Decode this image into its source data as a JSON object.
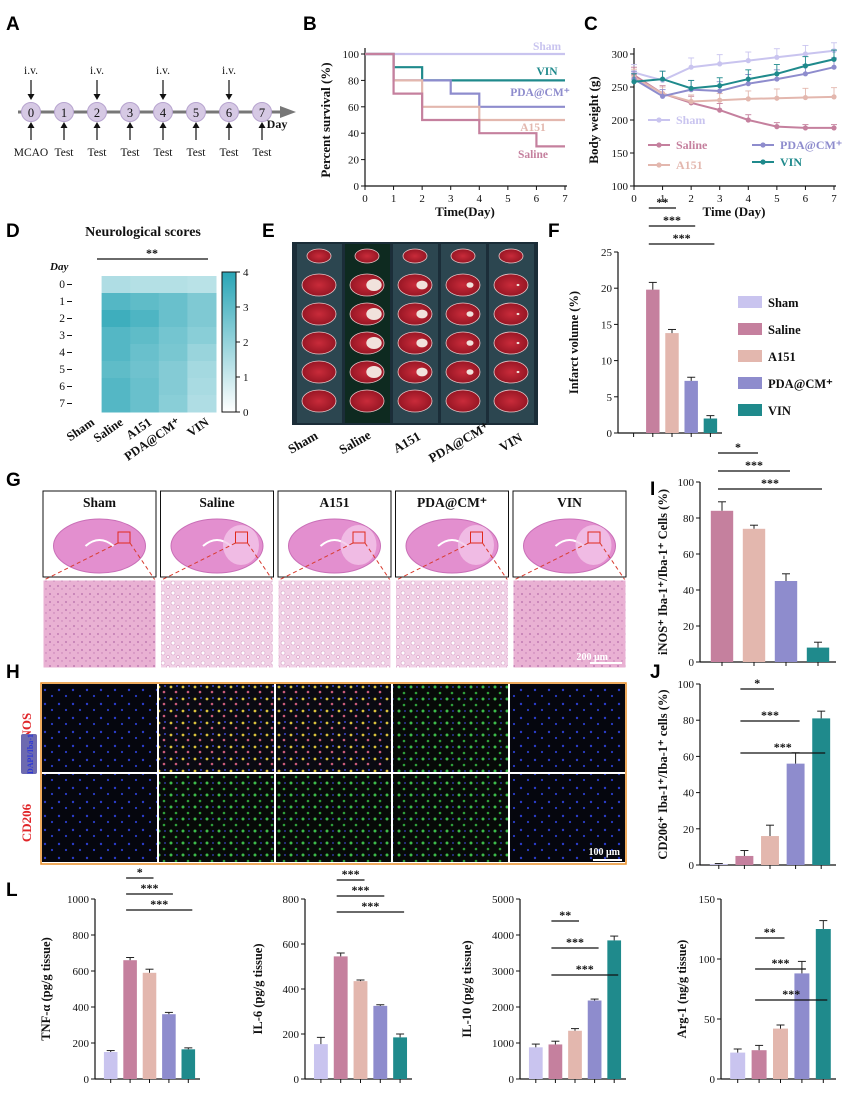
{
  "colors": {
    "sham": "#c9c4ef",
    "saline": "#c5809e",
    "a151": "#e3b7ae",
    "pda": "#8e8ccd",
    "vin": "#1f8a8c",
    "heat_low": "#ffffff",
    "heat_high": "#29a5b6"
  },
  "panel_labels": [
    "A",
    "B",
    "C",
    "D",
    "E",
    "F",
    "G",
    "H",
    "I",
    "J",
    "L"
  ],
  "timeline": {
    "days": [
      "0",
      "1",
      "2",
      "3",
      "4",
      "5",
      "6",
      "7"
    ],
    "top_labels": [
      "i.v.",
      "i.v.",
      "i.v.",
      "i.v."
    ],
    "top_label_days": [
      0,
      2,
      4,
      6
    ],
    "bottom_labels": [
      "MCAO",
      "Test",
      "Test",
      "Test",
      "Test",
      "Test",
      "Test",
      "Test"
    ],
    "axis_label": "Day"
  },
  "groups": [
    "Sham",
    "Saline",
    "A151",
    "PDA@CM⁺",
    "VIN"
  ],
  "chart_data": [
    {
      "id": "B",
      "type": "line",
      "xlabel": "Time(Day)",
      "ylabel": "Percent survival (%)",
      "xlim": [
        0,
        7
      ],
      "ylim": [
        0,
        100
      ],
      "xticks": [
        0,
        1,
        2,
        3,
        4,
        5,
        6,
        7
      ],
      "yticks": [
        0,
        20,
        40,
        60,
        80,
        100
      ],
      "series": [
        {
          "name": "Sham",
          "points": [
            [
              0,
              100
            ],
            [
              7,
              100
            ]
          ]
        },
        {
          "name": "VIN",
          "points": [
            [
              0,
              100
            ],
            [
              1,
              100
            ],
            [
              1,
              90
            ],
            [
              2,
              90
            ],
            [
              2,
              80
            ],
            [
              7,
              80
            ]
          ]
        },
        {
          "name": "PDA@CM⁺",
          "points": [
            [
              0,
              100
            ],
            [
              1,
              100
            ],
            [
              1,
              80
            ],
            [
              3,
              80
            ],
            [
              3,
              70
            ],
            [
              4,
              70
            ],
            [
              4,
              60
            ],
            [
              7,
              60
            ]
          ]
        },
        {
          "name": "A151",
          "points": [
            [
              0,
              100
            ],
            [
              1,
              100
            ],
            [
              1,
              80
            ],
            [
              2,
              80
            ],
            [
              2,
              60
            ],
            [
              4,
              60
            ],
            [
              4,
              50
            ],
            [
              7,
              50
            ]
          ]
        },
        {
          "name": "Saline",
          "points": [
            [
              0,
              100
            ],
            [
              1,
              100
            ],
            [
              1,
              70
            ],
            [
              2,
              70
            ],
            [
              2,
              50
            ],
            [
              4,
              50
            ],
            [
              4,
              40
            ],
            [
              6,
              40
            ],
            [
              6,
              30
            ],
            [
              7,
              30
            ]
          ]
        }
      ]
    },
    {
      "id": "C",
      "type": "line",
      "xlabel": "Time (Day)",
      "ylabel": "Body weight (g)",
      "xlim": [
        0,
        7
      ],
      "ylim": [
        100,
        300
      ],
      "xticks": [
        0,
        1,
        2,
        3,
        4,
        5,
        6,
        7
      ],
      "yticks": [
        100,
        150,
        200,
        250,
        300
      ],
      "legend": [
        "Sham",
        "Saline",
        "A151",
        "PDA@CM⁺",
        "VIN"
      ],
      "series": [
        {
          "name": "Sham",
          "x": [
            0,
            1,
            2,
            3,
            4,
            5,
            6,
            7
          ],
          "y": [
            272,
            260,
            280,
            285,
            290,
            295,
            300,
            305
          ],
          "err": [
            12,
            14,
            14,
            14,
            13,
            13,
            13,
            12
          ]
        },
        {
          "name": "Saline",
          "x": [
            0,
            1,
            2,
            3,
            4,
            5,
            6,
            7
          ],
          "y": [
            268,
            240,
            226,
            215,
            200,
            190,
            188,
            188
          ],
          "err": [
            12,
            12,
            10,
            10,
            8,
            6,
            5,
            5
          ]
        },
        {
          "name": "A151",
          "x": [
            0,
            1,
            2,
            3,
            4,
            5,
            6,
            7
          ],
          "y": [
            265,
            240,
            228,
            230,
            232,
            233,
            234,
            235
          ],
          "err": [
            12,
            10,
            10,
            10,
            12,
            14,
            14,
            14
          ]
        },
        {
          "name": "PDA@CM⁺",
          "x": [
            0,
            1,
            2,
            3,
            4,
            5,
            6,
            7
          ],
          "y": [
            262,
            236,
            246,
            244,
            255,
            262,
            270,
            280
          ],
          "err": [
            12,
            10,
            14,
            14,
            14,
            14,
            14,
            14
          ]
        },
        {
          "name": "VIN",
          "x": [
            0,
            1,
            2,
            3,
            4,
            5,
            6,
            7
          ],
          "y": [
            258,
            262,
            248,
            252,
            262,
            270,
            282,
            292
          ],
          "err": [
            12,
            12,
            12,
            12,
            14,
            14,
            14,
            14
          ]
        }
      ]
    },
    {
      "id": "D",
      "type": "heatmap",
      "title": "Neurological scores",
      "row_axis_label": "Day",
      "rows": [
        "0",
        "1",
        "2",
        "3",
        "4",
        "5",
        "6",
        "7"
      ],
      "columns": [
        "Sham",
        "Saline",
        "A151",
        "PDA@CM⁺",
        "VIN"
      ],
      "colorbar_ticks": [
        0,
        1,
        2,
        3,
        4
      ],
      "vmin": 0,
      "vmax": 4,
      "sig": "**",
      "values": [
        [
          0,
          1.5,
          1.4,
          1.4,
          1.3
        ],
        [
          0,
          3.2,
          3.0,
          2.8,
          2.4
        ],
        [
          0,
          3.6,
          3.3,
          2.8,
          2.4
        ],
        [
          0,
          3.2,
          3.0,
          2.6,
          2.2
        ],
        [
          0,
          3.2,
          2.8,
          2.5,
          1.9
        ],
        [
          0,
          3.0,
          2.7,
          2.3,
          1.7
        ],
        [
          0,
          3.2,
          2.8,
          2.3,
          1.6
        ],
        [
          0,
          3.2,
          2.8,
          2.2,
          1.5
        ]
      ]
    },
    {
      "id": "F",
      "type": "bar",
      "ylabel": "Infarct volume (%)",
      "ylim": [
        0,
        25
      ],
      "yticks": [
        0,
        5,
        10,
        15,
        20,
        25
      ],
      "categories": [
        "Sham",
        "Saline",
        "A151",
        "PDA@CM⁺",
        "VIN"
      ],
      "values": [
        0,
        19.8,
        13.8,
        7.2,
        2.0
      ],
      "err": [
        0,
        1.0,
        0.5,
        0.5,
        0.4
      ],
      "legend": [
        "Sham",
        "Saline",
        "A151",
        "PDA@CM⁺",
        "VIN"
      ],
      "sig": [
        {
          "from": 1,
          "to": 2,
          "label": "**"
        },
        {
          "from": 1,
          "to": 3,
          "label": "***"
        },
        {
          "from": 1,
          "to": 4,
          "label": "***"
        }
      ]
    },
    {
      "id": "I",
      "type": "bar",
      "ylabel": "iNOS⁺ Iba-1⁺/Iba-1⁺ Cells (%)",
      "ylim": [
        0,
        100
      ],
      "yticks": [
        0,
        20,
        40,
        60,
        80,
        100
      ],
      "categories": [
        "Saline",
        "A151",
        "PDA@CM⁺",
        "VIN"
      ],
      "values": [
        84,
        74,
        45,
        8
      ],
      "err": [
        5,
        2,
        4,
        3
      ],
      "sig": [
        {
          "from": 0,
          "to": 1,
          "label": "*"
        },
        {
          "from": 0,
          "to": 2,
          "label": "***"
        },
        {
          "from": 0,
          "to": 3,
          "label": "***"
        }
      ]
    },
    {
      "id": "J",
      "type": "bar",
      "ylabel": "CD206⁺ Iba-1⁺/Iba-1⁺ cells (%)",
      "ylim": [
        0,
        100
      ],
      "yticks": [
        0,
        20,
        40,
        60,
        80,
        100
      ],
      "categories": [
        "Sham",
        "Saline",
        "A151",
        "PDA@CM⁺",
        "VIN"
      ],
      "values": [
        0.5,
        5,
        16,
        56,
        81
      ],
      "err": [
        0.3,
        3,
        6,
        6,
        4
      ],
      "sig": [
        {
          "from": 1,
          "to": 2,
          "label": "*"
        },
        {
          "from": 1,
          "to": 3,
          "label": "***"
        },
        {
          "from": 1,
          "to": 4,
          "label": "***"
        }
      ]
    },
    {
      "id": "L1",
      "type": "bar",
      "ylabel": "TNF-α (pg/g tissue)",
      "ylim": [
        0,
        1000
      ],
      "yticks": [
        0,
        200,
        400,
        600,
        800,
        1000
      ],
      "categories": [
        "Sham",
        "Saline",
        "A151",
        "PDA@CM⁺",
        "VIN"
      ],
      "values": [
        150,
        660,
        590,
        360,
        165
      ],
      "err": [
        8,
        15,
        20,
        10,
        8
      ],
      "sig": [
        {
          "from": 1,
          "to": 2,
          "label": "*"
        },
        {
          "from": 1,
          "to": 3,
          "label": "***"
        },
        {
          "from": 1,
          "to": 4,
          "label": "***"
        }
      ]
    },
    {
      "id": "L2",
      "type": "bar",
      "ylabel": "IL-6 (pg/g tissue)",
      "ylim": [
        0,
        800
      ],
      "yticks": [
        0,
        200,
        400,
        600,
        800
      ],
      "categories": [
        "Sham",
        "Saline",
        "A151",
        "PDA@CM⁺",
        "VIN"
      ],
      "values": [
        155,
        545,
        435,
        325,
        185
      ],
      "err": [
        30,
        15,
        5,
        5,
        15
      ],
      "sig": [
        {
          "from": 1,
          "to": 2,
          "label": "***"
        },
        {
          "from": 1,
          "to": 3,
          "label": "***"
        },
        {
          "from": 1,
          "to": 4,
          "label": "***"
        }
      ]
    },
    {
      "id": "L3",
      "type": "bar",
      "ylabel": "IL-10 (pg/g tissue)",
      "ylim": [
        0,
        5000
      ],
      "yticks": [
        0,
        1000,
        2000,
        3000,
        4000,
        5000
      ],
      "categories": [
        "Sham",
        "Saline",
        "A151",
        "PDA@CM⁺",
        "VIN"
      ],
      "values": [
        880,
        960,
        1340,
        2180,
        3850
      ],
      "err": [
        90,
        90,
        60,
        40,
        120
      ],
      "sig": [
        {
          "from": 1,
          "to": 2,
          "label": "**"
        },
        {
          "from": 1,
          "to": 3,
          "label": "***"
        },
        {
          "from": 1,
          "to": 4,
          "label": "***"
        }
      ]
    },
    {
      "id": "L4",
      "type": "bar",
      "ylabel": "Arg-1 (ng/g tissue)",
      "ylim": [
        0,
        150
      ],
      "yticks": [
        0,
        50,
        100,
        150
      ],
      "categories": [
        "Sham",
        "Saline",
        "A151",
        "PDA@CM⁺",
        "VIN"
      ],
      "values": [
        22,
        24,
        42,
        88,
        125
      ],
      "err": [
        3,
        4,
        3,
        10,
        7
      ],
      "sig": [
        {
          "from": 1,
          "to": 2,
          "label": "**"
        },
        {
          "from": 1,
          "to": 3,
          "label": "***"
        },
        {
          "from": 1,
          "to": 4,
          "label": "***"
        }
      ]
    }
  ],
  "histology": {
    "groups": [
      "Sham",
      "Saline",
      "A151",
      "PDA@CM⁺",
      "VIN"
    ],
    "scale_bar": "200 μm"
  },
  "fluorescence": {
    "row_labels": [
      "iNOS",
      "CD206"
    ],
    "stain_label": "DAPI/Iba-1",
    "scale_bar": "100 μm"
  }
}
